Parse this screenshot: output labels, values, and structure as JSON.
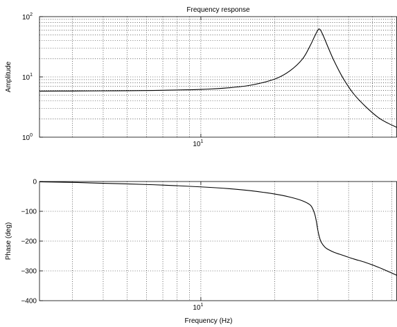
{
  "chart_data": [
    {
      "type": "line",
      "title": "Frequency response",
      "xlabel": "",
      "ylabel": "Amplitude",
      "xscale": "log",
      "yscale": "log",
      "xlim": [
        2.2,
        63
      ],
      "ylim": [
        1,
        100
      ],
      "x_ticks": [
        {
          "value": 10,
          "base": "10",
          "exp": "1"
        }
      ],
      "y_ticks": [
        {
          "value": 1,
          "base": "10",
          "exp": "0"
        },
        {
          "value": 10,
          "base": "10",
          "exp": "1"
        },
        {
          "value": 100,
          "base": "10",
          "exp": "2"
        }
      ],
      "grid": true,
      "series": [
        {
          "x": [
            2.2,
            3,
            4,
            5,
            7,
            10,
            13,
            16,
            20,
            23,
            26,
            28,
            29,
            30,
            30.5,
            31,
            32,
            33,
            35,
            38,
            42,
            47,
            53,
            58,
            63
          ],
          "y": [
            5.8,
            5.83,
            5.87,
            5.9,
            6.0,
            6.2,
            6.6,
            7.3,
            9.2,
            12.5,
            20,
            34,
            46,
            60,
            62,
            56,
            42,
            31,
            18,
            9.5,
            5.2,
            3.2,
            2.1,
            1.7,
            1.45
          ]
        }
      ]
    },
    {
      "type": "line",
      "title": "",
      "xlabel": "Frequency (Hz)",
      "ylabel": "Phase (deg)",
      "xscale": "log",
      "yscale": "linear",
      "xlim": [
        2.2,
        63
      ],
      "ylim": [
        -400,
        0
      ],
      "x_ticks": [
        {
          "value": 10,
          "base": "10",
          "exp": "1"
        }
      ],
      "y_ticks": [
        {
          "value": 0,
          "label": "0"
        },
        {
          "value": -100,
          "label": "−100"
        },
        {
          "value": -200,
          "label": "−200"
        },
        {
          "value": -300,
          "label": "−300"
        },
        {
          "value": -400,
          "label": "−400"
        }
      ],
      "grid": true,
      "series": [
        {
          "x": [
            2.2,
            3,
            4,
            5,
            7,
            10,
            13,
            16,
            20,
            23,
            26,
            28,
            29,
            29.5,
            30,
            30.5,
            31,
            32,
            33,
            35,
            38,
            42,
            47,
            53,
            58,
            63
          ],
          "y": [
            -1,
            -3,
            -6,
            -8,
            -12,
            -18,
            -24,
            -31,
            -42,
            -52,
            -65,
            -80,
            -105,
            -130,
            -165,
            -190,
            -205,
            -220,
            -228,
            -238,
            -248,
            -260,
            -272,
            -288,
            -302,
            -315
          ]
        }
      ]
    }
  ]
}
